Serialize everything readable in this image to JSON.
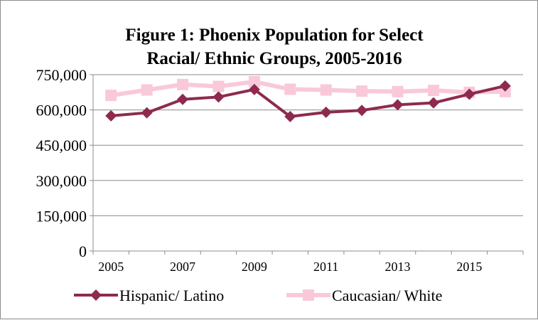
{
  "chart_data": {
    "type": "line",
    "title_lines": [
      "Figure 1: Phoenix Population for Select",
      "Racial/ Ethnic Groups, 2005-2016"
    ],
    "x": [
      2005,
      2006,
      2007,
      2008,
      2009,
      2010,
      2011,
      2012,
      2013,
      2014,
      2015,
      2016
    ],
    "x_tick_labels": [
      "2005",
      "2007",
      "2009",
      "2011",
      "2013",
      "2015"
    ],
    "y_tick_labels": [
      "0",
      "150,000",
      "300,000",
      "450,000",
      "600,000",
      "750,000"
    ],
    "ylim": [
      0,
      750000
    ],
    "grid": true,
    "legend_position": "bottom",
    "series": [
      {
        "name": "Hispanic/ Latino",
        "color": "#8e2a4f",
        "marker": "diamond",
        "values": [
          575000,
          588000,
          645000,
          655000,
          687000,
          572000,
          590000,
          598000,
          622000,
          630000,
          667000,
          702000
        ]
      },
      {
        "name": "Caucasian/ White",
        "color": "#f9c9d9",
        "marker": "square",
        "values": [
          662000,
          685000,
          708000,
          700000,
          720000,
          688000,
          685000,
          680000,
          678000,
          683000,
          675000,
          678000
        ]
      }
    ]
  }
}
